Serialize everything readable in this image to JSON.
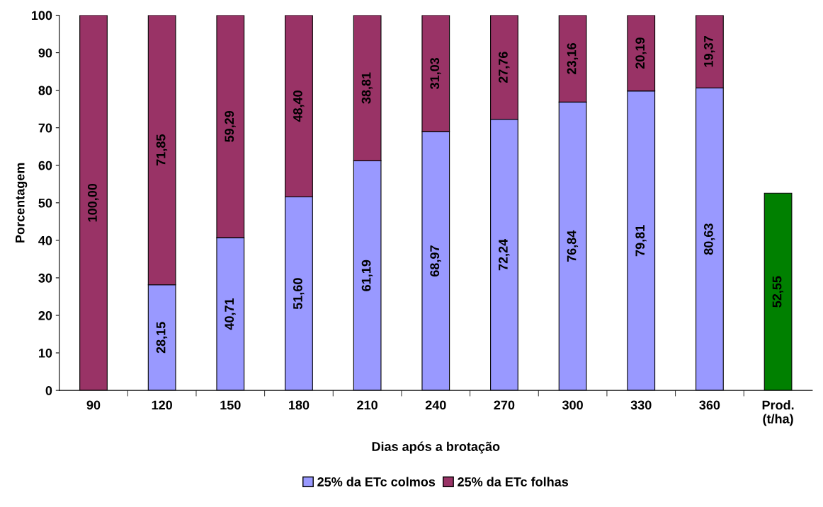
{
  "chart_data": {
    "type": "bar",
    "stacked": true,
    "xlabel": "Dias após a brotação",
    "ylabel": "Porcentagem",
    "categories": [
      "90",
      "120",
      "150",
      "180",
      "210",
      "240",
      "270",
      "300",
      "330",
      "360",
      "Prod.\n(t/ha)"
    ],
    "series": [
      {
        "name": "25% da ETc colmos",
        "color": "#9999ff",
        "values": [
          null,
          28.15,
          40.71,
          51.6,
          61.19,
          68.97,
          72.24,
          76.84,
          79.81,
          80.63,
          null
        ],
        "value_labels": [
          null,
          "28,15",
          "40,71",
          "51,60",
          "61,19",
          "68,97",
          "72,24",
          "76,84",
          "79,81",
          "80,63",
          null
        ]
      },
      {
        "name": "25% da ETc folhas",
        "color": "#993366",
        "values": [
          100,
          71.85,
          59.29,
          48.4,
          38.81,
          31.03,
          27.76,
          23.16,
          20.19,
          19.37,
          null
        ],
        "value_labels": [
          "100,00",
          "71,85",
          "59,29",
          "48,40",
          "38,81",
          "31,03",
          "27,76",
          "23,16",
          "20,19",
          "19,37",
          null
        ]
      },
      {
        "color": "#008000",
        "values": [
          null,
          null,
          null,
          null,
          null,
          null,
          null,
          null,
          null,
          null,
          52.55
        ],
        "value_labels": [
          null,
          null,
          null,
          null,
          null,
          null,
          null,
          null,
          null,
          null,
          "52,55"
        ]
      }
    ],
    "ylim": [
      0,
      100
    ],
    "yticks": [
      0,
      10,
      20,
      30,
      40,
      50,
      60,
      70,
      80,
      90,
      100
    ],
    "grid": false,
    "legend": "bottom"
  }
}
